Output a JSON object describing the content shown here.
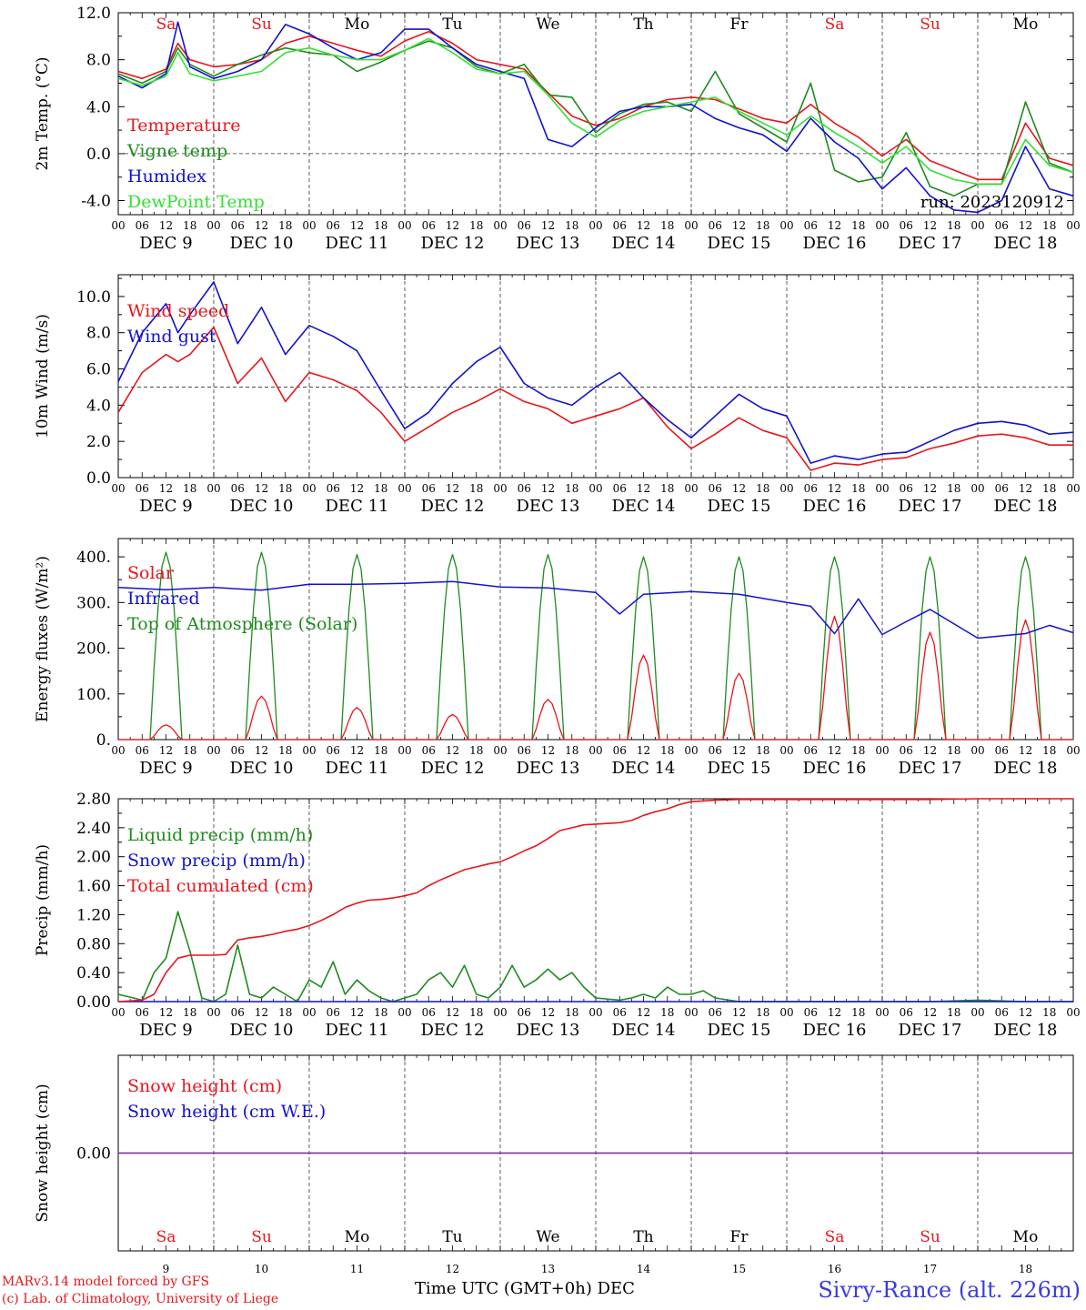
{
  "days": [
    "9",
    "10",
    "11",
    "12",
    "13",
    "14",
    "15",
    "16",
    "17",
    "18"
  ],
  "day_labels": [
    "DEC  9",
    "DEC 10",
    "DEC 11",
    "DEC 12",
    "DEC 13",
    "DEC 14",
    "DEC 15",
    "DEC 16",
    "DEC 17",
    "DEC 18"
  ],
  "weekdays": [
    "Sa",
    "Su",
    "Mo",
    "Tu",
    "We",
    "Th",
    "Fr",
    "Sa",
    "Su",
    "Mo"
  ],
  "weekend_flags": [
    true,
    true,
    false,
    false,
    false,
    false,
    false,
    true,
    true,
    false
  ],
  "hour_ticks": [
    "00",
    "06",
    "12",
    "18"
  ],
  "last_tick": "00",
  "colors": {
    "red": "#e8151b",
    "green": "#1f8a1f",
    "blue": "#1212cc",
    "lightgreen": "#33e033",
    "purple": "#7a1fa0",
    "grid": "#555555"
  },
  "chart_data": [
    {
      "id": "temperature",
      "type": "line",
      "ylabel": "2m Temp. (°C)",
      "ylim": [
        -5.2,
        12.0
      ],
      "yticks": [
        -4.0,
        0.0,
        4.0,
        8.0,
        12.0
      ],
      "ytick_labels": [
        "-4.0",
        "0.0",
        "4.0",
        "8.0",
        "12.0"
      ],
      "ref_line": 0.0,
      "run_label": "run: 2023120912",
      "x_hours": [
        0,
        6,
        12,
        15,
        18,
        24,
        30,
        36,
        42,
        48,
        54,
        60,
        66,
        72,
        78,
        84,
        90,
        96,
        102,
        108,
        114,
        120,
        126,
        132,
        138,
        144,
        150,
        156,
        162,
        168,
        174,
        180,
        186,
        192,
        198,
        204,
        210,
        216,
        222,
        228,
        234,
        240
      ],
      "series": [
        {
          "name": "Temperature",
          "color": "red",
          "values": [
            7.0,
            6.4,
            7.2,
            9.4,
            8.0,
            7.4,
            7.6,
            8.0,
            9.4,
            10.0,
            9.4,
            8.8,
            8.3,
            9.6,
            10.4,
            9.4,
            8.0,
            7.6,
            7.2,
            5.2,
            3.2,
            2.4,
            3.0,
            4.0,
            4.6,
            4.8,
            4.6,
            3.8,
            3.0,
            2.6,
            4.2,
            2.6,
            1.4,
            -0.2,
            1.2,
            -0.6,
            -1.4,
            -2.2,
            -2.2,
            2.6,
            -0.4,
            -1.0
          ]
        },
        {
          "name": "Vigne temp",
          "color": "green",
          "values": [
            6.8,
            6.0,
            7.0,
            9.0,
            7.6,
            6.6,
            7.6,
            8.4,
            9.0,
            8.6,
            8.4,
            7.0,
            7.8,
            8.8,
            9.6,
            9.0,
            7.4,
            6.8,
            7.6,
            5.0,
            4.8,
            1.8,
            3.4,
            4.2,
            4.4,
            3.6,
            7.0,
            3.4,
            2.2,
            1.0,
            6.0,
            -1.4,
            -2.4,
            -2.0,
            1.8,
            -2.8,
            -3.6,
            -2.6,
            -2.6,
            4.4,
            -0.8,
            -1.6
          ]
        },
        {
          "name": "Humidex",
          "color": "blue",
          "values": [
            6.6,
            5.6,
            6.8,
            11.2,
            7.4,
            6.4,
            7.0,
            8.0,
            11.0,
            10.2,
            9.0,
            8.0,
            8.6,
            10.6,
            10.6,
            9.0,
            7.6,
            7.0,
            6.4,
            1.2,
            0.6,
            2.2,
            3.6,
            4.0,
            4.0,
            4.2,
            3.0,
            2.2,
            1.6,
            0.2,
            3.0,
            1.0,
            -0.4,
            -3.0,
            -1.2,
            -3.6,
            -4.8,
            -5.0,
            -4.0,
            0.6,
            -3.0,
            -3.6
          ]
        },
        {
          "name": "DewPoint Temp",
          "color": "lightgreen",
          "values": [
            6.4,
            5.8,
            6.6,
            8.6,
            6.8,
            6.2,
            6.6,
            7.0,
            8.6,
            9.0,
            8.4,
            8.0,
            8.0,
            8.8,
            9.8,
            8.6,
            7.2,
            6.8,
            7.0,
            5.0,
            2.6,
            1.4,
            2.8,
            3.6,
            4.0,
            4.4,
            4.8,
            3.6,
            2.6,
            1.6,
            3.2,
            1.8,
            0.6,
            -0.8,
            0.6,
            -1.4,
            -2.2,
            -2.6,
            -2.6,
            1.2,
            -1.0,
            -1.6
          ]
        }
      ]
    },
    {
      "id": "wind",
      "type": "line",
      "ylabel": "10m Wind (m/s)",
      "ylim": [
        0,
        11.2
      ],
      "yticks": [
        0,
        2,
        4,
        6,
        8,
        10
      ],
      "ytick_labels": [
        "0.0",
        "2.0",
        "4.0",
        "6.0",
        "8.0",
        "10.0"
      ],
      "ref_line": 5.0,
      "x_hours": [
        0,
        6,
        12,
        15,
        18,
        24,
        30,
        36,
        42,
        48,
        54,
        60,
        66,
        72,
        78,
        84,
        90,
        96,
        102,
        108,
        114,
        120,
        126,
        132,
        138,
        144,
        150,
        156,
        162,
        168,
        174,
        180,
        186,
        192,
        198,
        204,
        210,
        216,
        222,
        228,
        234,
        240
      ],
      "series": [
        {
          "name": "Wind speed",
          "color": "red",
          "values": [
            3.6,
            5.8,
            6.8,
            6.4,
            6.8,
            8.3,
            5.2,
            6.6,
            4.2,
            5.8,
            5.4,
            4.8,
            3.6,
            2.0,
            2.8,
            3.6,
            4.2,
            4.9,
            4.2,
            3.8,
            3.0,
            3.4,
            3.8,
            4.4,
            2.8,
            1.6,
            2.4,
            3.3,
            2.6,
            2.2,
            0.4,
            0.8,
            0.7,
            1.0,
            1.1,
            1.6,
            1.9,
            2.3,
            2.4,
            2.2,
            1.8,
            1.8
          ]
        },
        {
          "name": "Wind gust",
          "color": "blue",
          "values": [
            5.3,
            8.0,
            9.6,
            8.0,
            9.0,
            10.8,
            7.4,
            9.4,
            6.8,
            8.4,
            7.8,
            7.0,
            4.8,
            2.7,
            3.6,
            5.2,
            6.4,
            7.2,
            5.2,
            4.4,
            4.0,
            5.0,
            5.8,
            4.4,
            3.2,
            2.2,
            3.4,
            4.6,
            3.8,
            3.4,
            0.8,
            1.2,
            1.0,
            1.3,
            1.4,
            2.0,
            2.6,
            3.0,
            3.1,
            2.9,
            2.4,
            2.5
          ]
        }
      ]
    },
    {
      "id": "fluxes",
      "type": "line",
      "ylabel": "Energy fluxes (W/m²)",
      "ylim": [
        0,
        440
      ],
      "yticks": [
        0,
        100,
        200,
        300,
        400
      ],
      "ytick_labels": [
        "0.",
        "100.",
        "200.",
        "300.",
        "400."
      ],
      "solar_peaks": [
        32,
        95,
        70,
        55,
        88,
        185,
        145,
        270,
        235,
        262
      ],
      "toa_peaks": [
        410,
        410,
        405,
        405,
        405,
        400,
        400,
        400,
        400,
        400
      ],
      "x_hours": [
        0,
        12,
        24,
        36,
        48,
        60,
        72,
        84,
        96,
        108,
        120,
        126,
        132,
        144,
        156,
        168,
        174,
        180,
        186,
        192,
        198,
        204,
        216,
        228,
        234,
        240
      ],
      "series": [
        {
          "name": "Solar",
          "color": "red"
        },
        {
          "name": "Infrared",
          "color": "blue",
          "values": [
            333,
            328,
            333,
            327,
            340,
            340,
            342,
            346,
            334,
            332,
            322,
            275,
            318,
            324,
            318,
            300,
            292,
            232,
            308,
            230,
            258,
            285,
            222,
            232,
            250,
            234
          ]
        },
        {
          "name": "Top of Atmosphere (Solar)",
          "color": "green"
        }
      ]
    },
    {
      "id": "precip",
      "type": "line",
      "ylabel": "Precip (mm/h)",
      "ylim": [
        0,
        2.8
      ],
      "yticks": [
        0,
        0.4,
        0.8,
        1.2,
        1.6,
        2.0,
        2.4,
        2.8
      ],
      "ytick_labels": [
        "0.00",
        "0.40",
        "0.80",
        "1.20",
        "1.60",
        "2.00",
        "2.40",
        "2.80"
      ],
      "x_hours": [
        0,
        6,
        9,
        12,
        15,
        18,
        21,
        24,
        27,
        30,
        33,
        36,
        39,
        42,
        45,
        48,
        51,
        54,
        57,
        60,
        63,
        66,
        69,
        72,
        75,
        78,
        81,
        84,
        87,
        90,
        93,
        96,
        99,
        102,
        105,
        108,
        111,
        114,
        117,
        120,
        126,
        129,
        132,
        135,
        138,
        141,
        144,
        147,
        150,
        156,
        168,
        180,
        192,
        204,
        216,
        228,
        240
      ],
      "series": [
        {
          "name": "Liquid precip (mm/h)",
          "color": "green",
          "values": [
            0.1,
            0.02,
            0.4,
            0.6,
            1.24,
            0.7,
            0.05,
            0.0,
            0.1,
            0.78,
            0.1,
            0.05,
            0.2,
            0.1,
            0.0,
            0.3,
            0.2,
            0.55,
            0.1,
            0.3,
            0.15,
            0.05,
            0.0,
            0.05,
            0.1,
            0.3,
            0.4,
            0.2,
            0.5,
            0.1,
            0.05,
            0.2,
            0.5,
            0.2,
            0.3,
            0.45,
            0.3,
            0.4,
            0.2,
            0.05,
            0.02,
            0.05,
            0.1,
            0.05,
            0.2,
            0.1,
            0.1,
            0.15,
            0.05,
            0.0,
            0.0,
            0.0,
            0.0,
            0.0,
            0.02,
            0.0,
            0.0
          ]
        },
        {
          "name": "Snow precip (mm/h)",
          "color": "blue",
          "values": [
            0,
            0,
            0,
            0,
            0,
            0,
            0,
            0,
            0,
            0,
            0,
            0,
            0,
            0,
            0,
            0,
            0,
            0,
            0,
            0,
            0,
            0,
            0,
            0,
            0,
            0,
            0,
            0,
            0,
            0,
            0,
            0,
            0,
            0,
            0,
            0,
            0,
            0,
            0,
            0,
            0,
            0,
            0,
            0,
            0,
            0,
            0,
            0,
            0,
            0,
            0,
            0,
            0,
            0,
            0,
            0,
            0
          ]
        },
        {
          "name": "Total cumulated (cm)",
          "color": "red",
          "values": [
            0.0,
            0.02,
            0.1,
            0.4,
            0.6,
            0.64,
            0.64,
            0.64,
            0.65,
            0.85,
            0.88,
            0.9,
            0.93,
            0.97,
            1.0,
            1.05,
            1.12,
            1.2,
            1.3,
            1.36,
            1.4,
            1.41,
            1.43,
            1.46,
            1.5,
            1.6,
            1.68,
            1.75,
            1.82,
            1.86,
            1.9,
            1.93,
            2.0,
            2.08,
            2.15,
            2.25,
            2.36,
            2.4,
            2.44,
            2.45,
            2.47,
            2.5,
            2.57,
            2.62,
            2.66,
            2.72,
            2.76,
            2.77,
            2.78,
            2.79,
            2.79,
            2.79,
            2.79,
            2.79,
            2.8,
            2.8,
            2.8
          ]
        }
      ]
    },
    {
      "id": "snow",
      "type": "line",
      "ylabel": "Snow height (cm)",
      "ytick_labels": [
        "0.00"
      ],
      "series": [
        {
          "name": "Snow height (cm)",
          "color": "red",
          "constant": 0
        },
        {
          "name": "Snow height (cm W.E.)",
          "color": "blue",
          "constant": 0
        }
      ]
    }
  ],
  "footer": {
    "model": "MARv3.14 model forced by GFS",
    "lab": "(c) Lab. of Climatology, University of Liege",
    "time_axis": "Time UTC (GMT+0h) DEC",
    "station": "Sivry-Rance (alt. 226m)"
  }
}
